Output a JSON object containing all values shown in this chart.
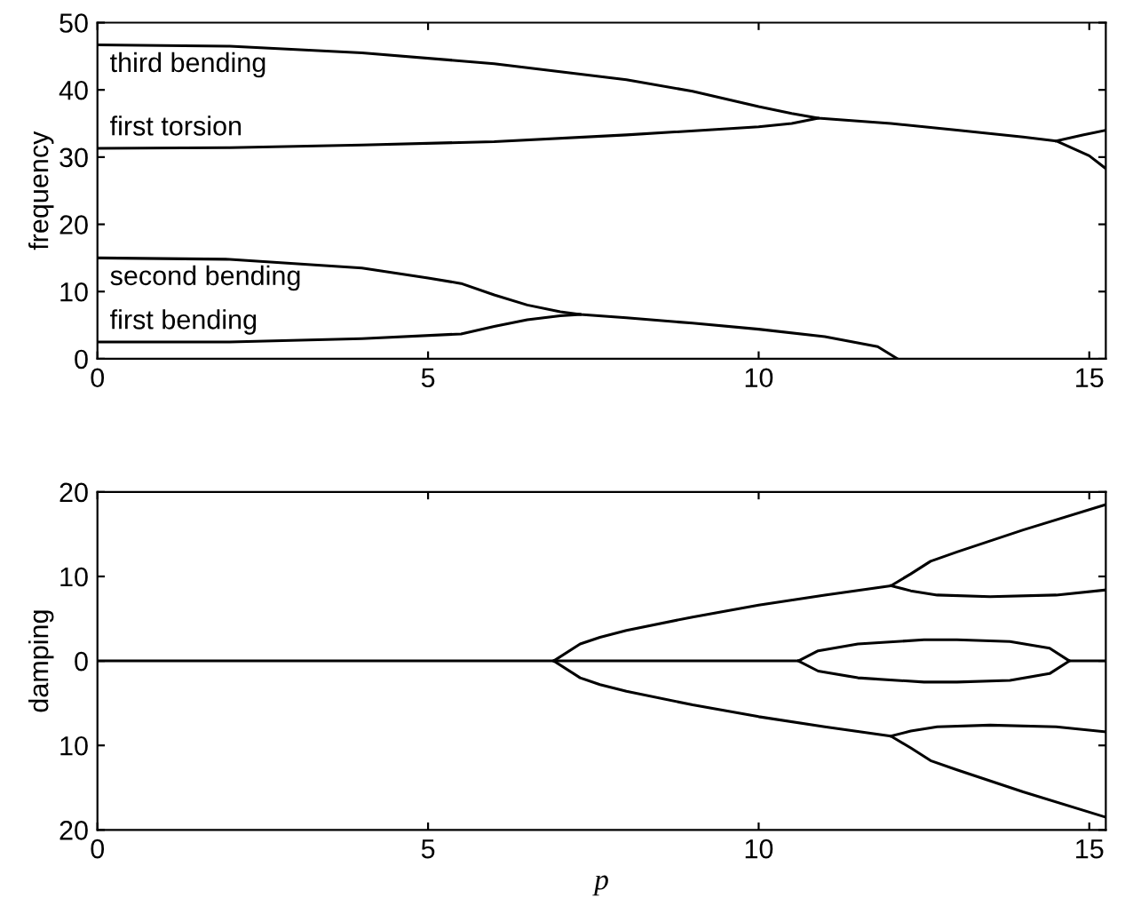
{
  "chart_data": [
    {
      "type": "line",
      "ylabel": "frequency",
      "xlim": [
        0,
        15.25
      ],
      "xticks": [
        0,
        5,
        10,
        15
      ],
      "ylim": [
        0,
        50
      ],
      "yticks": [
        0,
        10,
        20,
        30,
        40,
        50
      ],
      "grid": false,
      "marker": "none",
      "line_style": "solid",
      "series": [
        {
          "name": "third bending",
          "color": "#000000",
          "x": [
            0,
            2,
            4,
            6,
            8,
            9,
            10,
            10.5,
            10.9,
            12,
            13,
            14,
            14.5,
            15.0,
            15.25
          ],
          "values": [
            46.7,
            46.5,
            45.5,
            43.9,
            41.5,
            39.8,
            37.5,
            36.5,
            35.8,
            35.0,
            34.0,
            33.0,
            32.4,
            30.2,
            28.3
          ]
        },
        {
          "name": "first torsion",
          "color": "#000000",
          "x": [
            0,
            2,
            4,
            6,
            8,
            10,
            10.5,
            10.9
          ],
          "values": [
            31.3,
            31.4,
            31.8,
            32.3,
            33.3,
            34.5,
            35.0,
            35.8
          ]
        },
        {
          "color": "#000000",
          "x": [
            14.5,
            14.9,
            15.25
          ],
          "values": [
            32.4,
            33.3,
            34.0
          ]
        },
        {
          "name": "second bending",
          "color": "#000000",
          "x": [
            0,
            2,
            4,
            5,
            5.5,
            6,
            6.5,
            7.0,
            7.3,
            8,
            9,
            10,
            11,
            11.8,
            12.1
          ],
          "values": [
            15,
            14.8,
            13.5,
            12,
            11.2,
            9.5,
            8,
            7.0,
            6.6,
            6.1,
            5.3,
            4.4,
            3.3,
            1.8,
            0
          ]
        },
        {
          "name": "first bending",
          "color": "#000000",
          "x": [
            0,
            2,
            4,
            5.5,
            6,
            6.5,
            7.0,
            7.3
          ],
          "values": [
            2.5,
            2.5,
            3,
            3.7,
            4.8,
            5.8,
            6.4,
            6.6
          ]
        }
      ]
    },
    {
      "type": "line",
      "ylabel": "damping",
      "xlabel": "p",
      "xlim": [
        0,
        15.25
      ],
      "xticks": [
        0,
        5,
        10,
        15
      ],
      "ylim": [
        -20,
        20
      ],
      "yticks": [
        {
          "value": -20,
          "label": "20"
        },
        {
          "value": -10,
          "label": "10"
        },
        0,
        10,
        20
      ],
      "grid": false,
      "marker": "none",
      "line_style": "solid",
      "series": [
        {
          "color": "#000000",
          "x": [
            0,
            6.9,
            10.6,
            10.9,
            11.5,
            12.5,
            13,
            13.8,
            14.4,
            14.7,
            15.25
          ],
          "values": [
            0,
            0,
            0,
            1.2,
            2.0,
            2.5,
            2.5,
            2.3,
            1.5,
            0,
            0
          ]
        },
        {
          "color": "#000000",
          "x": [
            10.6,
            10.9,
            11.5,
            12.5,
            13,
            13.8,
            14.4,
            14.7
          ],
          "values": [
            0,
            -1.2,
            -2.0,
            -2.5,
            -2.5,
            -2.3,
            -1.5,
            0
          ]
        },
        {
          "color": "#000000",
          "x": [
            6.9,
            7.3,
            7.6,
            8,
            9,
            10,
            11,
            12,
            12.3,
            12.6,
            13,
            14,
            15.25
          ],
          "values": [
            0,
            2,
            2.8,
            3.6,
            5.2,
            6.6,
            7.8,
            8.9,
            10.3,
            11.8,
            12.9,
            15.5,
            18.5
          ]
        },
        {
          "color": "#000000",
          "x": [
            12,
            12.3,
            12.7,
            13.5,
            14.5,
            15.25
          ],
          "values": [
            8.9,
            8.3,
            7.8,
            7.6,
            7.8,
            8.4
          ]
        },
        {
          "color": "#000000",
          "x": [
            6.9,
            7.3,
            7.6,
            8,
            9,
            10,
            11,
            12,
            12.3,
            12.6,
            13,
            14,
            15.25
          ],
          "values": [
            0,
            -2,
            -2.8,
            -3.6,
            -5.2,
            -6.6,
            -7.8,
            -8.9,
            -10.3,
            -11.8,
            -12.9,
            -15.5,
            -18.5
          ]
        },
        {
          "color": "#000000",
          "x": [
            12,
            12.3,
            12.7,
            13.5,
            14.5,
            15.25
          ],
          "values": [
            -8.9,
            -8.3,
            -7.8,
            -7.6,
            -7.8,
            -8.4
          ]
        }
      ]
    }
  ]
}
